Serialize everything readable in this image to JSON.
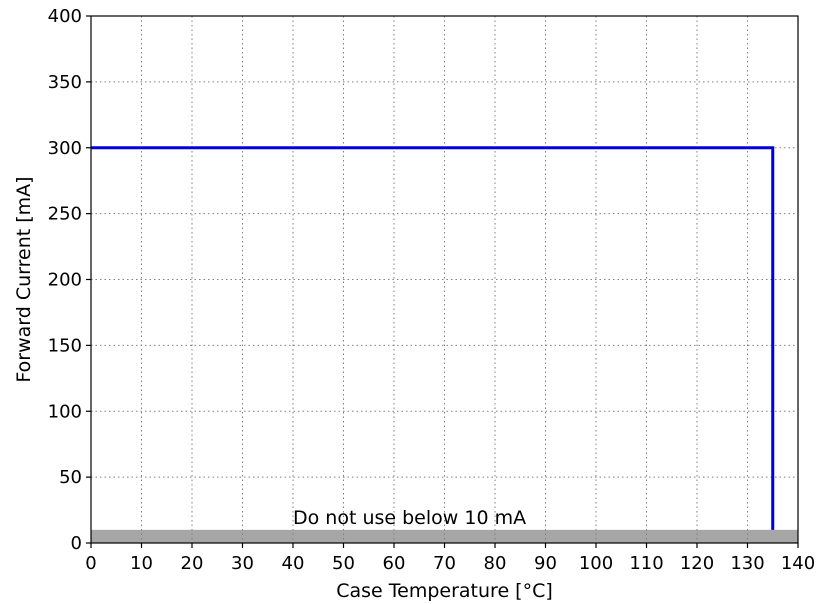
{
  "chart_data": {
    "type": "line",
    "xlabel": "Case Temperature [°C]",
    "ylabel": "Forward Current [mA]",
    "xlim": [
      0,
      140
    ],
    "ylim": [
      0,
      400
    ],
    "xticks": [
      0,
      10,
      20,
      30,
      40,
      50,
      60,
      70,
      80,
      90,
      100,
      110,
      120,
      130,
      140
    ],
    "yticks": [
      0,
      50,
      100,
      150,
      200,
      250,
      300,
      350,
      400
    ],
    "grid": true,
    "series": [
      {
        "color": "#0000dd",
        "x": [
          0,
          135,
          135
        ],
        "y": [
          300,
          300,
          10
        ]
      }
    ],
    "shaded_region": {
      "y_from": 0,
      "y_to": 10,
      "color": "#a6a6a6"
    },
    "annotation": {
      "text": "Do not use below 10 mA",
      "x": 40,
      "y": 10
    }
  }
}
